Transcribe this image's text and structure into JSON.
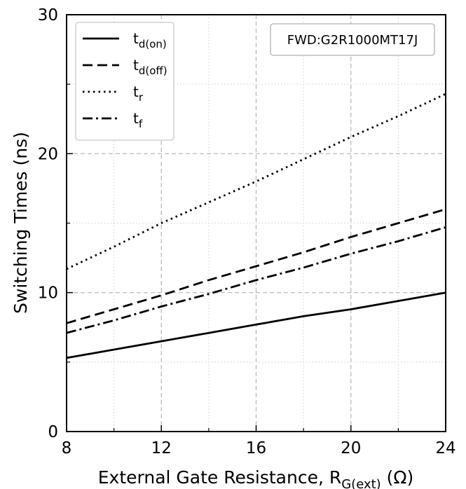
{
  "chart_data": {
    "type": "line",
    "xlabel": {
      "main": "External Gate Resistance, R",
      "sub": "G(ext)",
      "unit": " (Ω)"
    },
    "ylabel": "Switching Times (ns)",
    "xlim": [
      8,
      24
    ],
    "ylim": [
      0,
      30
    ],
    "x_ticks": [
      8,
      12,
      16,
      20,
      24
    ],
    "y_ticks": [
      0,
      10,
      20,
      30
    ],
    "x_minor_ticks": [
      10,
      14,
      18,
      22
    ],
    "y_minor_ticks": [
      5,
      15,
      25
    ],
    "grid": true,
    "legend_placement": "top-left",
    "annotation": "FWD:G2R1000MT17J",
    "x": [
      8,
      10,
      12,
      14,
      16,
      18,
      20,
      22,
      24
    ],
    "series": [
      {
        "name": "t",
        "sub": "d(on)",
        "dash": "solid",
        "values": [
          5.3,
          5.9,
          6.5,
          7.1,
          7.7,
          8.3,
          8.8,
          9.4,
          10.0
        ]
      },
      {
        "name": "t",
        "sub": "d(off)",
        "dash": "dashed",
        "values": [
          7.8,
          8.8,
          9.8,
          10.9,
          11.9,
          12.9,
          14.0,
          15.0,
          16.0
        ]
      },
      {
        "name": "t",
        "sub": "r",
        "dash": "dotted",
        "values": [
          11.7,
          13.3,
          15.0,
          16.5,
          18.0,
          19.6,
          21.2,
          22.7,
          24.3
        ]
      },
      {
        "name": "t",
        "sub": "f",
        "dash": "dashdot",
        "values": [
          7.1,
          8.0,
          9.0,
          9.9,
          10.9,
          11.8,
          12.8,
          13.7,
          14.7
        ]
      }
    ]
  }
}
